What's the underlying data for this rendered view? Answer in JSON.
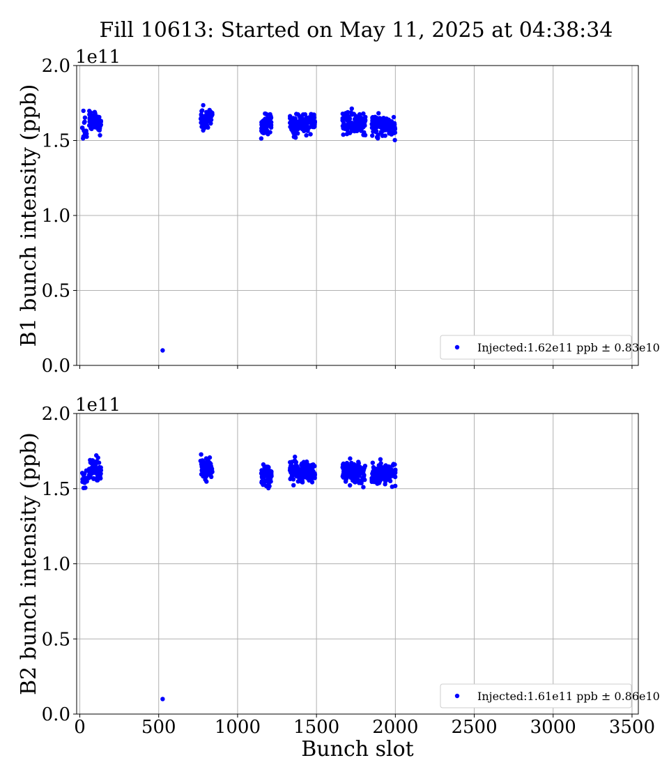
{
  "chart_data": {
    "title": "Fill 10613: Started on May 11, 2025 at 04:38:34",
    "colors": {
      "marker": "#0000ff",
      "grid": "#b0b0b0"
    },
    "panels": [
      {
        "type": "scatter",
        "ylabel": "B1 bunch intensity (ppb)",
        "offset_text": "1e11",
        "xlim": [
          -20,
          3540
        ],
        "ylim": [
          0.0,
          2.0
        ],
        "xticks": [
          0,
          500,
          1000,
          1500,
          2000,
          2500,
          3000,
          3500
        ],
        "xtick_labels": [],
        "yticks": [
          0.0,
          0.5,
          1.0,
          1.5,
          2.0
        ],
        "ytick_labels": [
          "0.0",
          "0.5",
          "1.0",
          "1.5",
          "2.0"
        ],
        "grid": true,
        "legend_position": "lower-right",
        "series": [
          {
            "name": "Injected:1.62e11 ppb ± 0.83e10",
            "marker_color": "#0000ff",
            "points": [
              [
                525,
                0.1
              ]
            ],
            "clusters": [
              {
                "x_range": [
                  15,
                  45
                ],
                "count": 14,
                "mean": 1.58,
                "spread": 0.07
              },
              {
                "x_range": [
                  55,
                  135
                ],
                "count": 64,
                "mean": 1.63,
                "spread": 0.05
              },
              {
                "x_range": [
                  765,
                  840
                ],
                "count": 72,
                "mean": 1.64,
                "spread": 0.05
              },
              {
                "x_range": [
                  1150,
                  1215
                ],
                "count": 64,
                "mean": 1.61,
                "spread": 0.05
              },
              {
                "x_range": [
                  1330,
                  1490
                ],
                "count": 150,
                "mean": 1.61,
                "spread": 0.045
              },
              {
                "x_range": [
                  1665,
                  1810
                ],
                "count": 140,
                "mean": 1.61,
                "spread": 0.045
              },
              {
                "x_range": [
                  1850,
                  2000
                ],
                "count": 140,
                "mean": 1.6,
                "spread": 0.045
              }
            ]
          }
        ]
      },
      {
        "type": "scatter",
        "ylabel": "B2 bunch intensity (ppb)",
        "xlabel": "Bunch slot",
        "offset_text": "1e11",
        "xlim": [
          -20,
          3540
        ],
        "ylim": [
          0.0,
          2.0
        ],
        "xticks": [
          0,
          500,
          1000,
          1500,
          2000,
          2500,
          3000,
          3500
        ],
        "xtick_labels": [
          "0",
          "500",
          "1000",
          "1500",
          "2000",
          "2500",
          "3000",
          "3500"
        ],
        "yticks": [
          0.0,
          0.5,
          1.0,
          1.5,
          2.0
        ],
        "ytick_labels": [
          "0.0",
          "0.5",
          "1.0",
          "1.5",
          "2.0"
        ],
        "grid": true,
        "legend_position": "lower-right",
        "series": [
          {
            "name": "Injected:1.61e11 ppb ± 0.86e10",
            "marker_color": "#0000ff",
            "points": [
              [
                525,
                0.1
              ]
            ],
            "clusters": [
              {
                "x_range": [
                  15,
                  45
                ],
                "count": 14,
                "mean": 1.55,
                "spread": 0.06
              },
              {
                "x_range": [
                  55,
                  135
                ],
                "count": 64,
                "mean": 1.63,
                "spread": 0.05
              },
              {
                "x_range": [
                  765,
                  840
                ],
                "count": 72,
                "mean": 1.63,
                "spread": 0.05
              },
              {
                "x_range": [
                  1150,
                  1215
                ],
                "count": 64,
                "mean": 1.59,
                "spread": 0.05
              },
              {
                "x_range": [
                  1330,
                  1490
                ],
                "count": 150,
                "mean": 1.61,
                "spread": 0.05
              },
              {
                "x_range": [
                  1665,
                  1810
                ],
                "count": 140,
                "mean": 1.61,
                "spread": 0.05
              },
              {
                "x_range": [
                  1850,
                  2000
                ],
                "count": 140,
                "mean": 1.59,
                "spread": 0.045
              }
            ]
          }
        ]
      }
    ]
  }
}
